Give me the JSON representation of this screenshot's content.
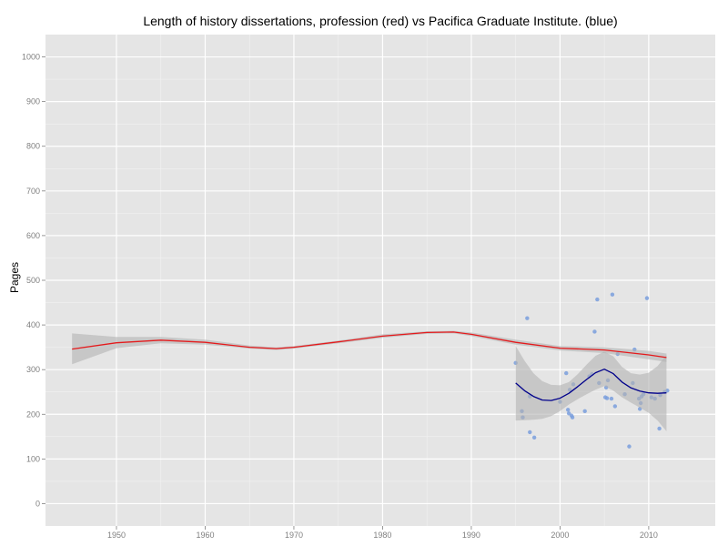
{
  "chart_data": {
    "type": "scatter",
    "title": "Length of history dissertations, profession (red) vs Pacifica Graduate Institute. (blue)",
    "xlabel": "",
    "ylabel": "Pages",
    "xlim": [
      1942,
      2017.5
    ],
    "ylim": [
      -50,
      1050
    ],
    "x_ticks": [
      1950,
      1960,
      1970,
      1980,
      1990,
      2000,
      2010
    ],
    "y_ticks": [
      0,
      100,
      200,
      300,
      400,
      500,
      600,
      700,
      800,
      900,
      1000
    ],
    "grid": true,
    "background_color": "#e5e5e5",
    "colors": {
      "profession": "#e41a1c",
      "pacifica": "#00008b",
      "points": "#7a9fdd",
      "band": "#b2b2b2"
    },
    "series": [
      {
        "type": "scatter",
        "values": [
          [
            1995.0,
            315
          ],
          [
            1995.7,
            207
          ],
          [
            1995.8,
            193
          ],
          [
            1996.3,
            415
          ],
          [
            1996.6,
            240
          ],
          [
            1996.6,
            160
          ],
          [
            1997.1,
            148
          ],
          [
            2000.0,
            228
          ],
          [
            2000.7,
            292
          ],
          [
            2000.9,
            210
          ],
          [
            2001.0,
            202
          ],
          [
            2001.1,
            255
          ],
          [
            2001.3,
            197
          ],
          [
            2001.4,
            193
          ],
          [
            2001.5,
            267
          ],
          [
            2002.8,
            207
          ],
          [
            2003.3,
            285
          ],
          [
            2003.6,
            290
          ],
          [
            2003.9,
            385
          ],
          [
            2004.2,
            457
          ],
          [
            2004.4,
            270
          ],
          [
            2005.1,
            238
          ],
          [
            2005.2,
            260
          ],
          [
            2005.3,
            236
          ],
          [
            2005.4,
            276
          ],
          [
            2005.9,
            468
          ],
          [
            2005.8,
            235
          ],
          [
            2006.2,
            218
          ],
          [
            2006.5,
            335
          ],
          [
            2007.3,
            245
          ],
          [
            2007.8,
            128
          ],
          [
            2008.2,
            270
          ],
          [
            2008.4,
            345
          ],
          [
            2008.9,
            235
          ],
          [
            2009.0,
            212
          ],
          [
            2009.1,
            225
          ],
          [
            2009.2,
            240
          ],
          [
            2009.4,
            245
          ],
          [
            2009.8,
            460
          ],
          [
            2010.3,
            238
          ],
          [
            2010.7,
            235
          ],
          [
            2011.2,
            168
          ],
          [
            2011.3,
            243
          ],
          [
            2011.8,
            250
          ],
          [
            2012.1,
            253
          ]
        ]
      },
      {
        "type": "smooth",
        "x": [
          1945,
          1950,
          1955,
          1960,
          1965,
          1968,
          1970,
          1975,
          1980,
          1985,
          1988,
          1990,
          1995,
          2000,
          2005,
          2010,
          2012
        ],
        "y": [
          346,
          360,
          366,
          361,
          350,
          347,
          350,
          362,
          375,
          383,
          384,
          379,
          361,
          348,
          344,
          333,
          327
        ],
        "lower": [
          312,
          348,
          359,
          356,
          347,
          344,
          347,
          359,
          371,
          380,
          381,
          375,
          356,
          343,
          337,
          323,
          317
        ],
        "upper": [
          381,
          373,
          373,
          367,
          354,
          350,
          353,
          365,
          379,
          386,
          387,
          383,
          367,
          353,
          350,
          342,
          336
        ]
      },
      {
        "type": "smooth",
        "x": [
          1995.0,
          1996.0,
          1997.0,
          1998.0,
          1999.0,
          2000.0,
          2001.0,
          2002.0,
          2003.0,
          2004.0,
          2005.0,
          2006.0,
          2007.0,
          2008.0,
          2009.0,
          2010.0,
          2011.0,
          2012.0
        ],
        "y": [
          270,
          253,
          240,
          232,
          231,
          236,
          247,
          262,
          278,
          293,
          301,
          291,
          272,
          259,
          252,
          248,
          247,
          248
        ],
        "lower": [
          186,
          187,
          188,
          190,
          196,
          207,
          222,
          234,
          245,
          255,
          263,
          253,
          238,
          226,
          215,
          203,
          186,
          162
        ],
        "upper": [
          353,
          320,
          292,
          274,
          266,
          265,
          272,
          290,
          311,
          331,
          340,
          330,
          306,
          292,
          289,
          293,
          308,
          333
        ]
      }
    ]
  }
}
